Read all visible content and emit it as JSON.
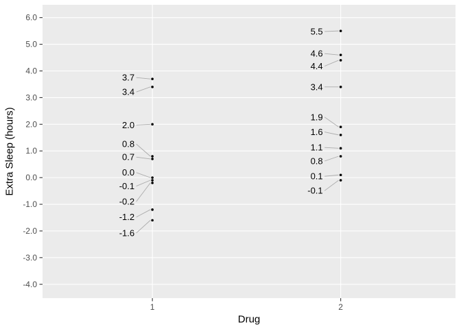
{
  "figure": {
    "background": "#FFFFFF",
    "panel_background": "#EBEBEB",
    "gridline_color": "#FFFFFF",
    "tick_mark_color": "#333333",
    "axis_text_color": "#4D4D4D",
    "axis_title_color": "#000000",
    "point_color": "#000000",
    "point_label_color": "#000000",
    "leader_line_color": "#ABABAB"
  },
  "chart_data": {
    "type": "scatter",
    "title": "",
    "xlabel": "Drug",
    "ylabel": "Extra Sleep (hours)",
    "x_categories": [
      "1",
      "2"
    ],
    "x_positions": [
      0.266,
      0.722
    ],
    "ylim": [
      -4.52,
      6.48
    ],
    "yticks": [
      {
        "value": 6.0,
        "label": "6.0"
      },
      {
        "value": 5.0,
        "label": "5.0"
      },
      {
        "value": 4.0,
        "label": "4.0"
      },
      {
        "value": 3.0,
        "label": "3.0"
      },
      {
        "value": 2.0,
        "label": "2.0"
      },
      {
        "value": 1.0,
        "label": "1.0"
      },
      {
        "value": 0.0,
        "label": "0.0"
      },
      {
        "value": -1.0,
        "label": "-1.0"
      },
      {
        "value": -2.0,
        "label": "-2.0"
      },
      {
        "value": -3.0,
        "label": "-3.0"
      },
      {
        "value": -4.0,
        "label": "-4.0"
      }
    ],
    "grid": "major horizontal and vertical white gridlines on gray panel, no minor gridlines",
    "legend": "none",
    "series": [
      {
        "name": "Drug 1",
        "category": "1",
        "points": [
          {
            "value": 3.7,
            "label": "3.7",
            "label_at": 3.75
          },
          {
            "value": 3.4,
            "label": "3.4",
            "label_at": 3.21
          },
          {
            "value": 2.0,
            "label": "2.0",
            "label_at": 1.97
          },
          {
            "value": 0.8,
            "label": "0.8",
            "label_at": 1.26
          },
          {
            "value": 0.7,
            "label": "0.7",
            "label_at": 0.77
          },
          {
            "value": 0.0,
            "label": "0.0",
            "label_at": 0.19
          },
          {
            "value": -0.1,
            "label": "-0.1",
            "label_at": -0.32
          },
          {
            "value": -0.2,
            "label": "-0.2",
            "label_at": -0.9
          },
          {
            "value": -1.2,
            "label": "-1.2",
            "label_at": -1.48
          },
          {
            "value": -1.6,
            "label": "-1.6",
            "label_at": -2.08
          }
        ]
      },
      {
        "name": "Drug 2",
        "category": "2",
        "points": [
          {
            "value": 5.5,
            "label": "5.5",
            "label_at": 5.48
          },
          {
            "value": 4.6,
            "label": "4.6",
            "label_at": 4.65
          },
          {
            "value": 4.4,
            "label": "4.4",
            "label_at": 4.18
          },
          {
            "value": 3.4,
            "label": "3.4",
            "label_at": 3.4
          },
          {
            "value": 1.9,
            "label": "1.9",
            "label_at": 2.27
          },
          {
            "value": 1.6,
            "label": "1.6",
            "label_at": 1.71
          },
          {
            "value": 1.1,
            "label": "1.1",
            "label_at": 1.13
          },
          {
            "value": 0.8,
            "label": "0.8",
            "label_at": 0.62
          },
          {
            "value": 0.1,
            "label": "0.1",
            "label_at": 0.05
          },
          {
            "value": -0.1,
            "label": "-0.1",
            "label_at": -0.49
          }
        ]
      }
    ]
  }
}
